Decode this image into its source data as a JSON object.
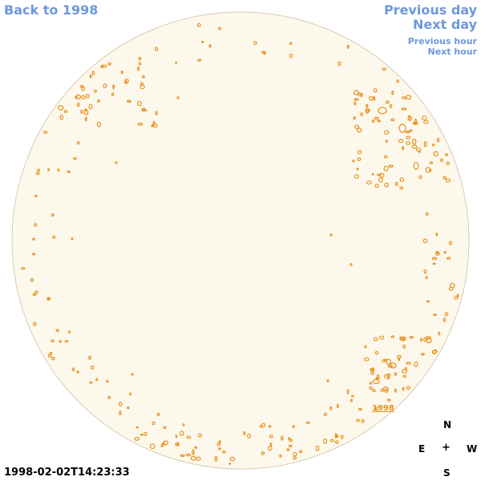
{
  "nav": {
    "back": "Back to 1998",
    "previous_day": "Previous day",
    "next_day": "Next day",
    "previous_hour": "Previous hour",
    "next_hour": "Next hour"
  },
  "timestamp": "1998-02-02T14:23:33",
  "compass": {
    "n": "N",
    "e": "E",
    "w": "W",
    "s": "S",
    "center": "+"
  },
  "year_label": "1998",
  "colors": {
    "disk_fill": "#fdf8ec",
    "disk_border": "#d8ccb4",
    "contour": "#e8901c",
    "nav_link": "#6e98dc"
  }
}
